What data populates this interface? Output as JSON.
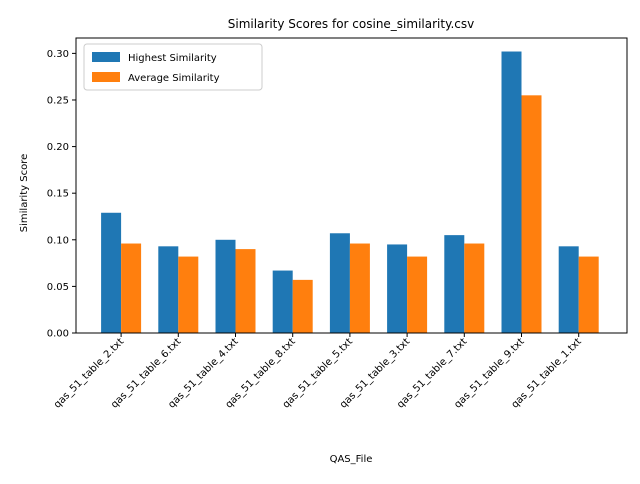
{
  "chart_data": {
    "type": "bar",
    "title": "Similarity Scores for cosine_similarity.csv",
    "xlabel": "QAS_File",
    "ylabel": "Similarity Score",
    "ylim": [
      0,
      0.3165
    ],
    "yticks": [
      "0.00",
      "0.05",
      "0.10",
      "0.15",
      "0.20",
      "0.25",
      "0.30"
    ],
    "grid": false,
    "legend_position": "top-left",
    "categories": [
      "qas_51_table_2.txt",
      "qas_51_table_6.txt",
      "qas_51_table_4.txt",
      "qas_51_table_8.txt",
      "qas_51_table_5.txt",
      "qas_51_table_3.txt",
      "qas_51_table_7.txt",
      "qas_51_table_9.txt",
      "qas_51_table_1.txt"
    ],
    "series": [
      {
        "name": "Highest Similarity",
        "color": "#1f77b4",
        "values": [
          0.129,
          0.093,
          0.1,
          0.067,
          0.107,
          0.095,
          0.105,
          0.302,
          0.093
        ]
      },
      {
        "name": "Average Similarity",
        "color": "#ff7f0e",
        "values": [
          0.096,
          0.082,
          0.09,
          0.057,
          0.096,
          0.082,
          0.096,
          0.255,
          0.082
        ]
      }
    ]
  }
}
